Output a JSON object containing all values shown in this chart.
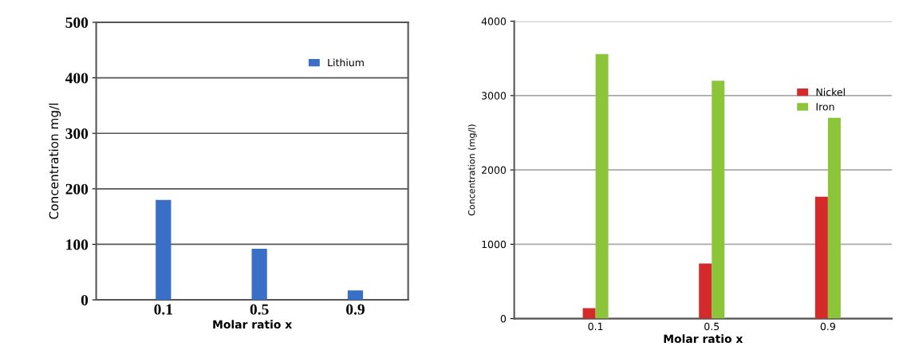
{
  "chart_data": [
    {
      "type": "bar",
      "xlabel": "Molar ratio x",
      "ylabel": "Concentration mg/l",
      "categories": [
        "0.1",
        "0.5",
        "0.9"
      ],
      "series": [
        {
          "name": "Lithium",
          "color": "#3a6fc8",
          "values": [
            180,
            92,
            17
          ]
        }
      ],
      "ylim": [
        0,
        500
      ],
      "yticks": [
        0,
        100,
        200,
        300,
        400,
        500
      ],
      "grid": "y",
      "legend": "top right"
    },
    {
      "type": "bar",
      "xlabel": "Molar ratio x",
      "ylabel": "Concentration (mg/l)",
      "categories": [
        "0.1",
        "0.5",
        "0.9"
      ],
      "series": [
        {
          "name": "Nickel",
          "color": "#d42a2a",
          "values": [
            140,
            740,
            1640
          ]
        },
        {
          "name": "Iron",
          "color": "#8cc43a",
          "values": [
            3560,
            3200,
            2700
          ]
        }
      ],
      "ylim": [
        0,
        4000
      ],
      "yticks": [
        0,
        1000,
        2000,
        3000,
        4000
      ],
      "grid": "y",
      "legend": "top right"
    }
  ]
}
